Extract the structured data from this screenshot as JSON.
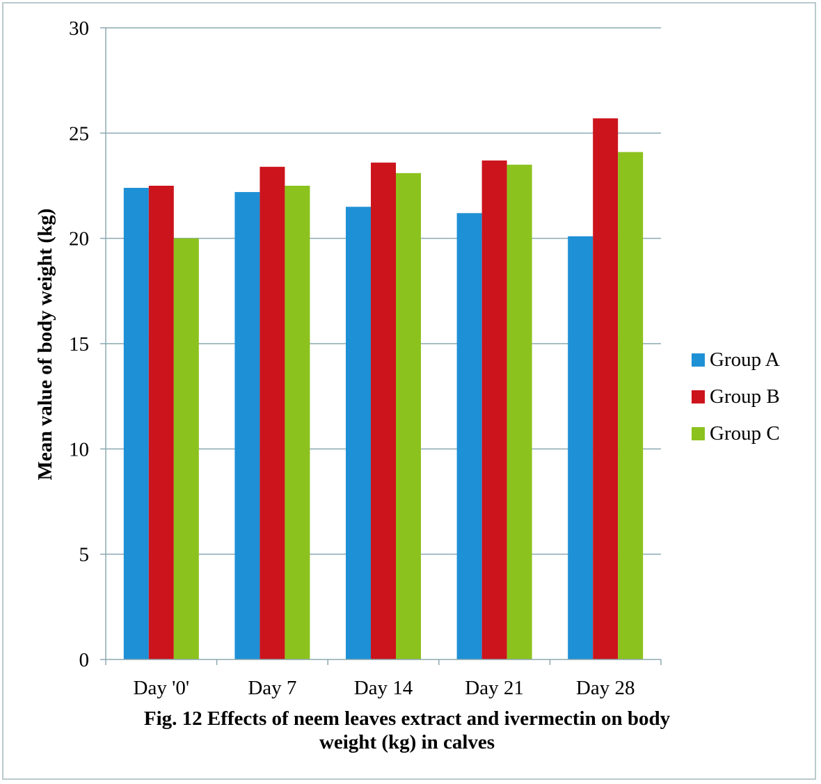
{
  "chart_data": {
    "type": "bar",
    "categories": [
      "Day '0'",
      "Day 7",
      "Day 14",
      "Day 21",
      "Day 28"
    ],
    "series": [
      {
        "name": "Group A",
        "color": "#1e90d6",
        "values": [
          22.4,
          22.2,
          21.5,
          21.2,
          20.1
        ]
      },
      {
        "name": "Group B",
        "color": "#cc141c",
        "values": [
          22.5,
          23.4,
          23.6,
          23.7,
          25.7
        ]
      },
      {
        "name": "Group C",
        "color": "#8cc21e",
        "values": [
          20.0,
          22.5,
          23.1,
          23.5,
          24.1
        ]
      }
    ],
    "ylabel": "Mean value of body weight (kg)",
    "xlabel": "",
    "ylim": [
      0,
      30
    ],
    "yticks": [
      0,
      5,
      10,
      15,
      20,
      25,
      30
    ],
    "grid": true,
    "legend_position": "right",
    "gridline_color": "#8aa9b0"
  },
  "caption": {
    "line1": "Fig. 12 Effects of neem leaves extract and ivermectin on body",
    "line2": "weight (kg) in calves"
  }
}
